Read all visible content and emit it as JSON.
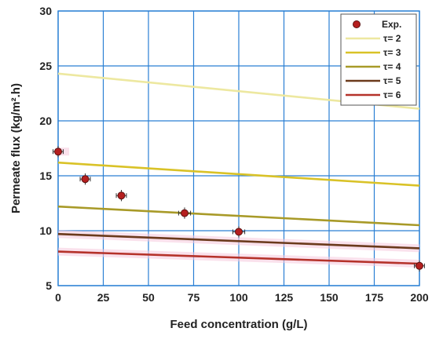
{
  "chart_data": {
    "type": "scatter",
    "xlabel": "Feed concentration (g/L)",
    "ylabel": "Permeate flux (kg/m².h)",
    "xlim": [
      0,
      200
    ],
    "ylim": [
      5,
      30
    ],
    "xticks": [
      0,
      25,
      50,
      75,
      100,
      125,
      150,
      175,
      200
    ],
    "yticks": [
      5,
      10,
      15,
      20,
      25,
      30
    ],
    "grid": true,
    "legend_position": "top-right",
    "points": {
      "name": "Exp.",
      "color": "#b51f1f",
      "x": [
        0,
        15,
        35,
        70,
        100,
        200
      ],
      "y": [
        17.2,
        14.7,
        13.2,
        11.6,
        9.9,
        6.8
      ],
      "xerr": [
        1.5,
        1.5,
        1.5,
        2,
        2,
        1.5
      ],
      "yerr": [
        0.3,
        0.3,
        0.3,
        0.3,
        0.3,
        0.3
      ]
    },
    "series": [
      {
        "name": "τ= 2",
        "color": "#ede8a0",
        "x": [
          0,
          200
        ],
        "y": [
          24.3,
          21.1
        ]
      },
      {
        "name": "τ= 3",
        "color": "#d9c227",
        "x": [
          0,
          200
        ],
        "y": [
          16.2,
          14.1
        ]
      },
      {
        "name": "τ= 4",
        "color": "#a89a28",
        "x": [
          0,
          200
        ],
        "y": [
          12.2,
          10.5
        ]
      },
      {
        "name": "τ= 5",
        "color": "#6b3a1c",
        "x": [
          0,
          200
        ],
        "y": [
          9.7,
          8.4
        ]
      },
      {
        "name": "τ= 6",
        "color": "#b5322a",
        "x": [
          0,
          200
        ],
        "y": [
          8.1,
          7.0
        ]
      }
    ]
  }
}
